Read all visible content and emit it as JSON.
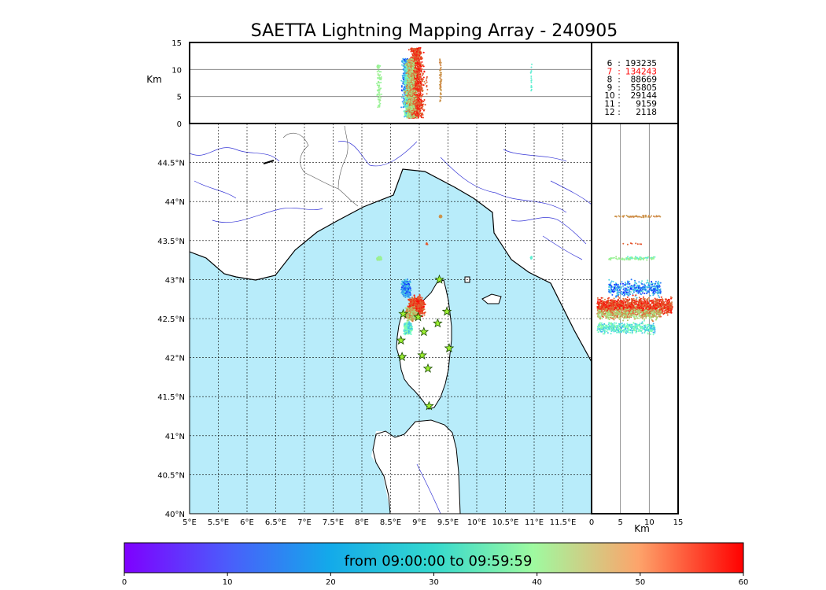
{
  "chart_data": {
    "type": "scatter",
    "title": "SAETTA Lightning Mapping Array - 240905",
    "map": {
      "lon_range": [
        5,
        12
      ],
      "lat_range": [
        40,
        45
      ],
      "x_ticks": [
        "5°E",
        "5.5°E",
        "6°E",
        "6.5°E",
        "7°E",
        "7.5°E",
        "8°E",
        "8.5°E",
        "9°E",
        "9.5°E",
        "10°E",
        "10.5°E",
        "11°E",
        "11.5°E"
      ],
      "y_ticks": [
        "40°N",
        "40.5°N",
        "41°N",
        "41.5°N",
        "42°N",
        "42.5°N",
        "43°N",
        "43.5°N",
        "44°N",
        "44.5°N"
      ],
      "grid": true,
      "sea_color": "#b8ecfa",
      "stations_lonlat": [
        [
          8.72,
          42.56
        ],
        [
          8.68,
          42.22
        ],
        [
          8.7,
          42.01
        ],
        [
          9.08,
          42.33
        ],
        [
          9.32,
          42.44
        ],
        [
          9.48,
          42.59
        ],
        [
          9.35,
          43.0
        ],
        [
          9.05,
          42.03
        ],
        [
          9.52,
          42.12
        ],
        [
          9.15,
          41.86
        ],
        [
          9.17,
          41.38
        ],
        [
          8.98,
          42.52
        ]
      ]
    },
    "top_panel": {
      "ylabel": "Km",
      "y_range": [
        0,
        15
      ],
      "y_ticks": [
        "0",
        "5",
        "10",
        "15"
      ],
      "gridlines_km": [
        5,
        10
      ]
    },
    "right_panel": {
      "xlabel": "Km",
      "x_range": [
        0,
        15
      ],
      "x_ticks": [
        "0",
        "5",
        "10",
        "15"
      ],
      "gridlines_km": [
        5,
        10
      ]
    },
    "legend": [
      {
        "label": "6",
        "count": "193235",
        "color": "#000000"
      },
      {
        "label": "7",
        "count": "134243",
        "color": "#ff0000"
      },
      {
        "label": "8",
        "count": "88669",
        "color": "#000000"
      },
      {
        "label": "9",
        "count": "55805",
        "color": "#000000"
      },
      {
        "label": "10",
        "count": "29144",
        "color": "#000000"
      },
      {
        "label": "11",
        "count": "9159",
        "color": "#000000"
      },
      {
        "label": "12",
        "count": "2118",
        "color": "#000000"
      }
    ],
    "colorbar": {
      "label": "from 09:00:00 to 09:59:59",
      "range": [
        0,
        60
      ],
      "ticks": [
        "0",
        "10",
        "20",
        "30",
        "40",
        "50",
        "60"
      ],
      "colormap": "rainbow"
    },
    "clusters": [
      {
        "lon": 8.77,
        "lat": 42.88,
        "spread_lon": 0.1,
        "spread_lat": 0.14,
        "tmin": 2,
        "tmax": 22,
        "n": 380,
        "zmin": 3,
        "zmax": 12
      },
      {
        "lon": 8.8,
        "lat": 42.38,
        "spread_lon": 0.09,
        "spread_lat": 0.1,
        "tmin": 14,
        "tmax": 34,
        "n": 420,
        "zmin": 1,
        "zmax": 11
      },
      {
        "lon": 8.95,
        "lat": 42.66,
        "spread_lon": 0.16,
        "spread_lat": 0.15,
        "tmin": 50,
        "tmax": 60,
        "n": 1300,
        "zmin": 1,
        "zmax": 14
      },
      {
        "lon": 8.85,
        "lat": 42.56,
        "spread_lon": 0.12,
        "spread_lat": 0.1,
        "tmin": 36,
        "tmax": 52,
        "n": 500,
        "zmin": 1,
        "zmax": 12
      },
      {
        "lon": 8.3,
        "lat": 43.27,
        "spread_lon": 0.05,
        "spread_lat": 0.03,
        "tmin": 34,
        "tmax": 38,
        "n": 80,
        "zmin": 3,
        "zmax": 11
      },
      {
        "lon": 9.37,
        "lat": 43.81,
        "spread_lon": 0.03,
        "spread_lat": 0.02,
        "tmin": 47,
        "tmax": 50,
        "n": 60,
        "zmin": 4,
        "zmax": 12
      },
      {
        "lon": 10.95,
        "lat": 43.28,
        "spread_lon": 0.02,
        "spread_lat": 0.02,
        "tmin": 22,
        "tmax": 24,
        "n": 18,
        "zmin": 6,
        "zmax": 11
      },
      {
        "lon": 9.13,
        "lat": 43.46,
        "spread_lon": 0.02,
        "spread_lat": 0.02,
        "tmin": 52,
        "tmax": 56,
        "n": 8,
        "zmin": 5,
        "zmax": 9
      }
    ]
  }
}
